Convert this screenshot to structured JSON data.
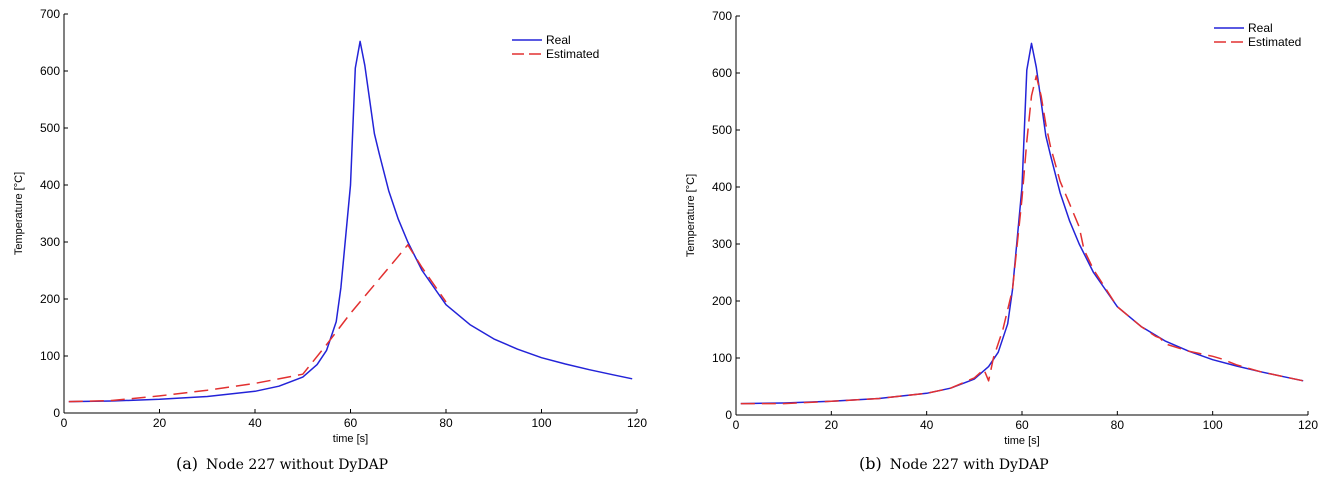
{
  "chart_data": [
    {
      "type": "line",
      "caption_tag": "(a)",
      "caption_text": "Node 227 without DyDAP",
      "xlabel": "time [s]",
      "ylabel": "Temperature [°C]",
      "xlim": [
        0,
        120
      ],
      "ylim": [
        0,
        700
      ],
      "xticks": [
        0,
        20,
        40,
        60,
        80,
        100,
        120
      ],
      "yticks": [
        0,
        100,
        200,
        300,
        400,
        500,
        600,
        700
      ],
      "grid": false,
      "legend_position": "top-right",
      "series": [
        {
          "name": "Real",
          "color": "#2323d8",
          "style": "solid",
          "x": [
            1,
            10,
            20,
            30,
            40,
            45,
            50,
            53,
            55,
            57,
            58,
            60,
            61,
            62,
            63,
            64,
            65,
            66,
            68,
            70,
            72,
            75,
            80,
            85,
            90,
            95,
            100,
            105,
            110,
            115,
            119
          ],
          "y": [
            20,
            21,
            24,
            29,
            38,
            47,
            63,
            85,
            110,
            160,
            220,
            400,
            605,
            652,
            610,
            550,
            490,
            455,
            390,
            340,
            300,
            250,
            190,
            155,
            130,
            112,
            97,
            86,
            76,
            67,
            60
          ]
        },
        {
          "name": "Estimated",
          "color": "#e23030",
          "style": "dashed",
          "x": [
            1,
            10,
            20,
            30,
            40,
            50,
            55,
            60,
            65,
            70,
            72,
            75,
            80
          ],
          "y": [
            20,
            22,
            30,
            40,
            52,
            68,
            120,
            175,
            225,
            275,
            295,
            255,
            195
          ]
        }
      ]
    },
    {
      "type": "line",
      "caption_tag": "(b)",
      "caption_text": "Node 227 with DyDAP",
      "xlabel": "time [s]",
      "ylabel": "Temperature [°C]",
      "xlim": [
        0,
        120
      ],
      "ylim": [
        0,
        700
      ],
      "xticks": [
        0,
        20,
        40,
        60,
        80,
        100,
        120
      ],
      "yticks": [
        0,
        100,
        200,
        300,
        400,
        500,
        600,
        700
      ],
      "grid": false,
      "legend_position": "top-right",
      "series": [
        {
          "name": "Real",
          "color": "#2323d8",
          "style": "solid",
          "x": [
            1,
            10,
            20,
            30,
            40,
            45,
            50,
            53,
            55,
            57,
            58,
            60,
            61,
            62,
            63,
            64,
            65,
            66,
            68,
            70,
            72,
            75,
            80,
            85,
            90,
            95,
            100,
            105,
            110,
            115,
            119
          ],
          "y": [
            20,
            21,
            24,
            29,
            38,
            47,
            63,
            85,
            110,
            160,
            220,
            400,
            605,
            652,
            610,
            550,
            490,
            455,
            390,
            340,
            300,
            250,
            190,
            155,
            130,
            112,
            97,
            86,
            76,
            67,
            60
          ]
        },
        {
          "name": "Estimated",
          "color": "#e23030",
          "style": "dashed",
          "x": [
            1,
            10,
            20,
            30,
            40,
            45,
            50,
            52,
            53,
            54,
            56,
            58,
            60,
            61,
            62,
            63,
            64,
            65,
            66,
            68,
            70,
            72,
            73,
            75,
            80,
            85,
            88,
            89,
            90,
            95,
            100,
            102,
            105,
            110,
            115,
            119
          ],
          "y": [
            20,
            20,
            24,
            29,
            38,
            47,
            65,
            80,
            60,
            100,
            150,
            220,
            380,
            480,
            560,
            595,
            560,
            510,
            470,
            410,
            370,
            330,
            290,
            255,
            190,
            155,
            138,
            135,
            125,
            112,
            103,
            98,
            88,
            76,
            67,
            60
          ]
        }
      ]
    }
  ]
}
